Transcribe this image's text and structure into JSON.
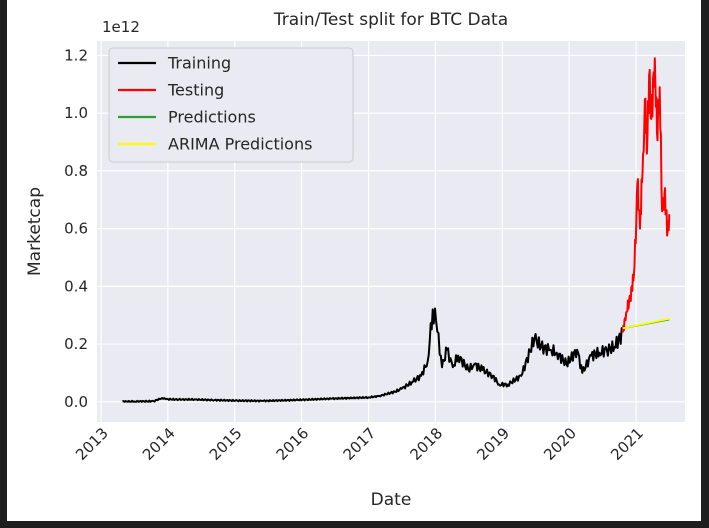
{
  "chart_data": {
    "type": "line",
    "title": "Train/Test split for BTC Data",
    "xlabel": "Date",
    "ylabel": "Marketcap",
    "y_offset_label": "1e12",
    "xlim": [
      "2012-12-10",
      "2021-09-25"
    ],
    "ylim": [
      -0.07,
      1.25
    ],
    "x_ticks": [
      "2013",
      "2014",
      "2015",
      "2016",
      "2017",
      "2018",
      "2019",
      "2020",
      "2021"
    ],
    "y_ticks": [
      "0.0",
      "0.2",
      "0.4",
      "0.6",
      "0.8",
      "1.0",
      "1.2"
    ],
    "y_unit_multiplier": 1000000000000.0,
    "grid": true,
    "legend": {
      "position": "top-left",
      "entries": [
        "Training",
        "Testing",
        "Predictions",
        "ARIMA Predictions"
      ]
    },
    "series": [
      {
        "name": "Training",
        "color": "#000000",
        "x": [
          "2013-04-28",
          "2013-07-01",
          "2013-10-15",
          "2013-11-30",
          "2013-12-20",
          "2014-03-01",
          "2014-06-01",
          "2014-09-01",
          "2015-01-15",
          "2015-06-01",
          "2015-12-01",
          "2016-06-15",
          "2016-12-31",
          "2017-03-01",
          "2017-05-25",
          "2017-07-01",
          "2017-09-01",
          "2017-10-15",
          "2017-11-20",
          "2017-12-17",
          "2018-01-05",
          "2018-02-06",
          "2018-03-05",
          "2018-04-06",
          "2018-05-05",
          "2018-06-30",
          "2018-08-01",
          "2018-09-15",
          "2018-11-10",
          "2018-12-15",
          "2019-02-01",
          "2019-04-15",
          "2019-06-26",
          "2019-08-01",
          "2019-09-20",
          "2019-10-26",
          "2019-12-18",
          "2020-02-14",
          "2020-03-13",
          "2020-05-01",
          "2020-06-15",
          "2020-07-25",
          "2020-09-05",
          "2020-10-20"
        ],
        "y": [
          0.001,
          0.001,
          0.002,
          0.013,
          0.009,
          0.008,
          0.008,
          0.006,
          0.004,
          0.003,
          0.006,
          0.011,
          0.015,
          0.02,
          0.035,
          0.045,
          0.07,
          0.09,
          0.14,
          0.32,
          0.28,
          0.12,
          0.18,
          0.12,
          0.16,
          0.11,
          0.13,
          0.11,
          0.09,
          0.06,
          0.06,
          0.09,
          0.22,
          0.19,
          0.18,
          0.17,
          0.13,
          0.18,
          0.1,
          0.16,
          0.17,
          0.18,
          0.19,
          0.24
        ]
      },
      {
        "name": "Testing",
        "color": "#ff0000",
        "x": [
          "2020-10-20",
          "2020-11-08",
          "2020-11-30",
          "2020-12-20",
          "2021-01-02",
          "2021-01-08",
          "2021-01-22",
          "2021-02-08",
          "2021-02-21",
          "2021-03-01",
          "2021-03-13",
          "2021-03-25",
          "2021-04-13",
          "2021-04-25",
          "2021-05-10",
          "2021-05-23",
          "2021-06-05",
          "2021-06-22",
          "2021-07-01"
        ],
        "y": [
          0.24,
          0.31,
          0.36,
          0.44,
          0.62,
          0.76,
          0.6,
          0.86,
          1.05,
          0.86,
          1.13,
          0.98,
          1.19,
          0.93,
          1.09,
          0.66,
          0.72,
          0.59,
          0.65
        ]
      },
      {
        "name": "Predictions",
        "color": "#2ca02c",
        "x": [
          "2020-10-20",
          "2021-07-01"
        ],
        "y": [
          0.255,
          0.285
        ]
      },
      {
        "name": "ARIMA Predictions",
        "color": "#ffff00",
        "x": [
          "2020-10-20",
          "2021-07-01"
        ],
        "y": [
          0.255,
          0.288
        ]
      }
    ]
  }
}
